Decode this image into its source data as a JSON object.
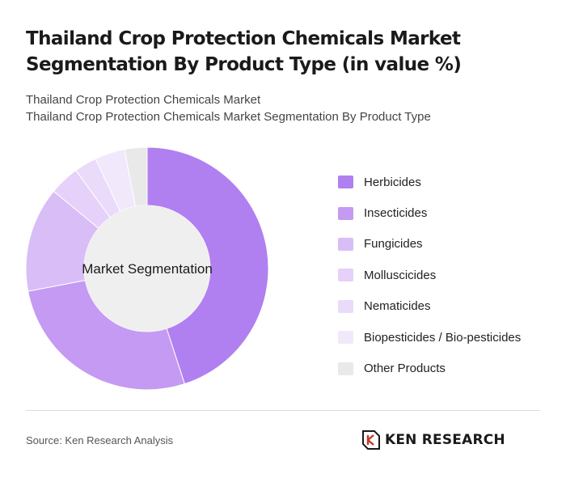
{
  "title": "Thailand Crop Protection Chemicals Market Segmentation By Product Type (in value %)",
  "subtitle_line1": "Thailand Crop Protection Chemicals Market",
  "subtitle_line2": "Thailand Crop Protection Chemicals Market Segmentation By Product Type",
  "source": "Source: Ken Research Analysis",
  "logo": {
    "text": "KEN RESEARCH",
    "icon": "ken-research-logo-icon"
  },
  "chart_data": {
    "type": "pie",
    "variant": "donut",
    "center_label": "Market Segmentation",
    "legend_position": "right",
    "labels": [
      "Herbicides",
      "Insecticides",
      "Fungicides",
      "Molluscicides",
      "Nematicides",
      "Biopesticides / Bio-pesticides",
      "Other Products"
    ],
    "values": [
      45,
      27,
      14,
      4,
      3,
      4,
      3
    ],
    "colors": [
      "#b07ff0",
      "#c49af3",
      "#d9bdf7",
      "#e5d1fa",
      "#eadbfb",
      "#f1e8fc",
      "#e9e9e9"
    ]
  }
}
